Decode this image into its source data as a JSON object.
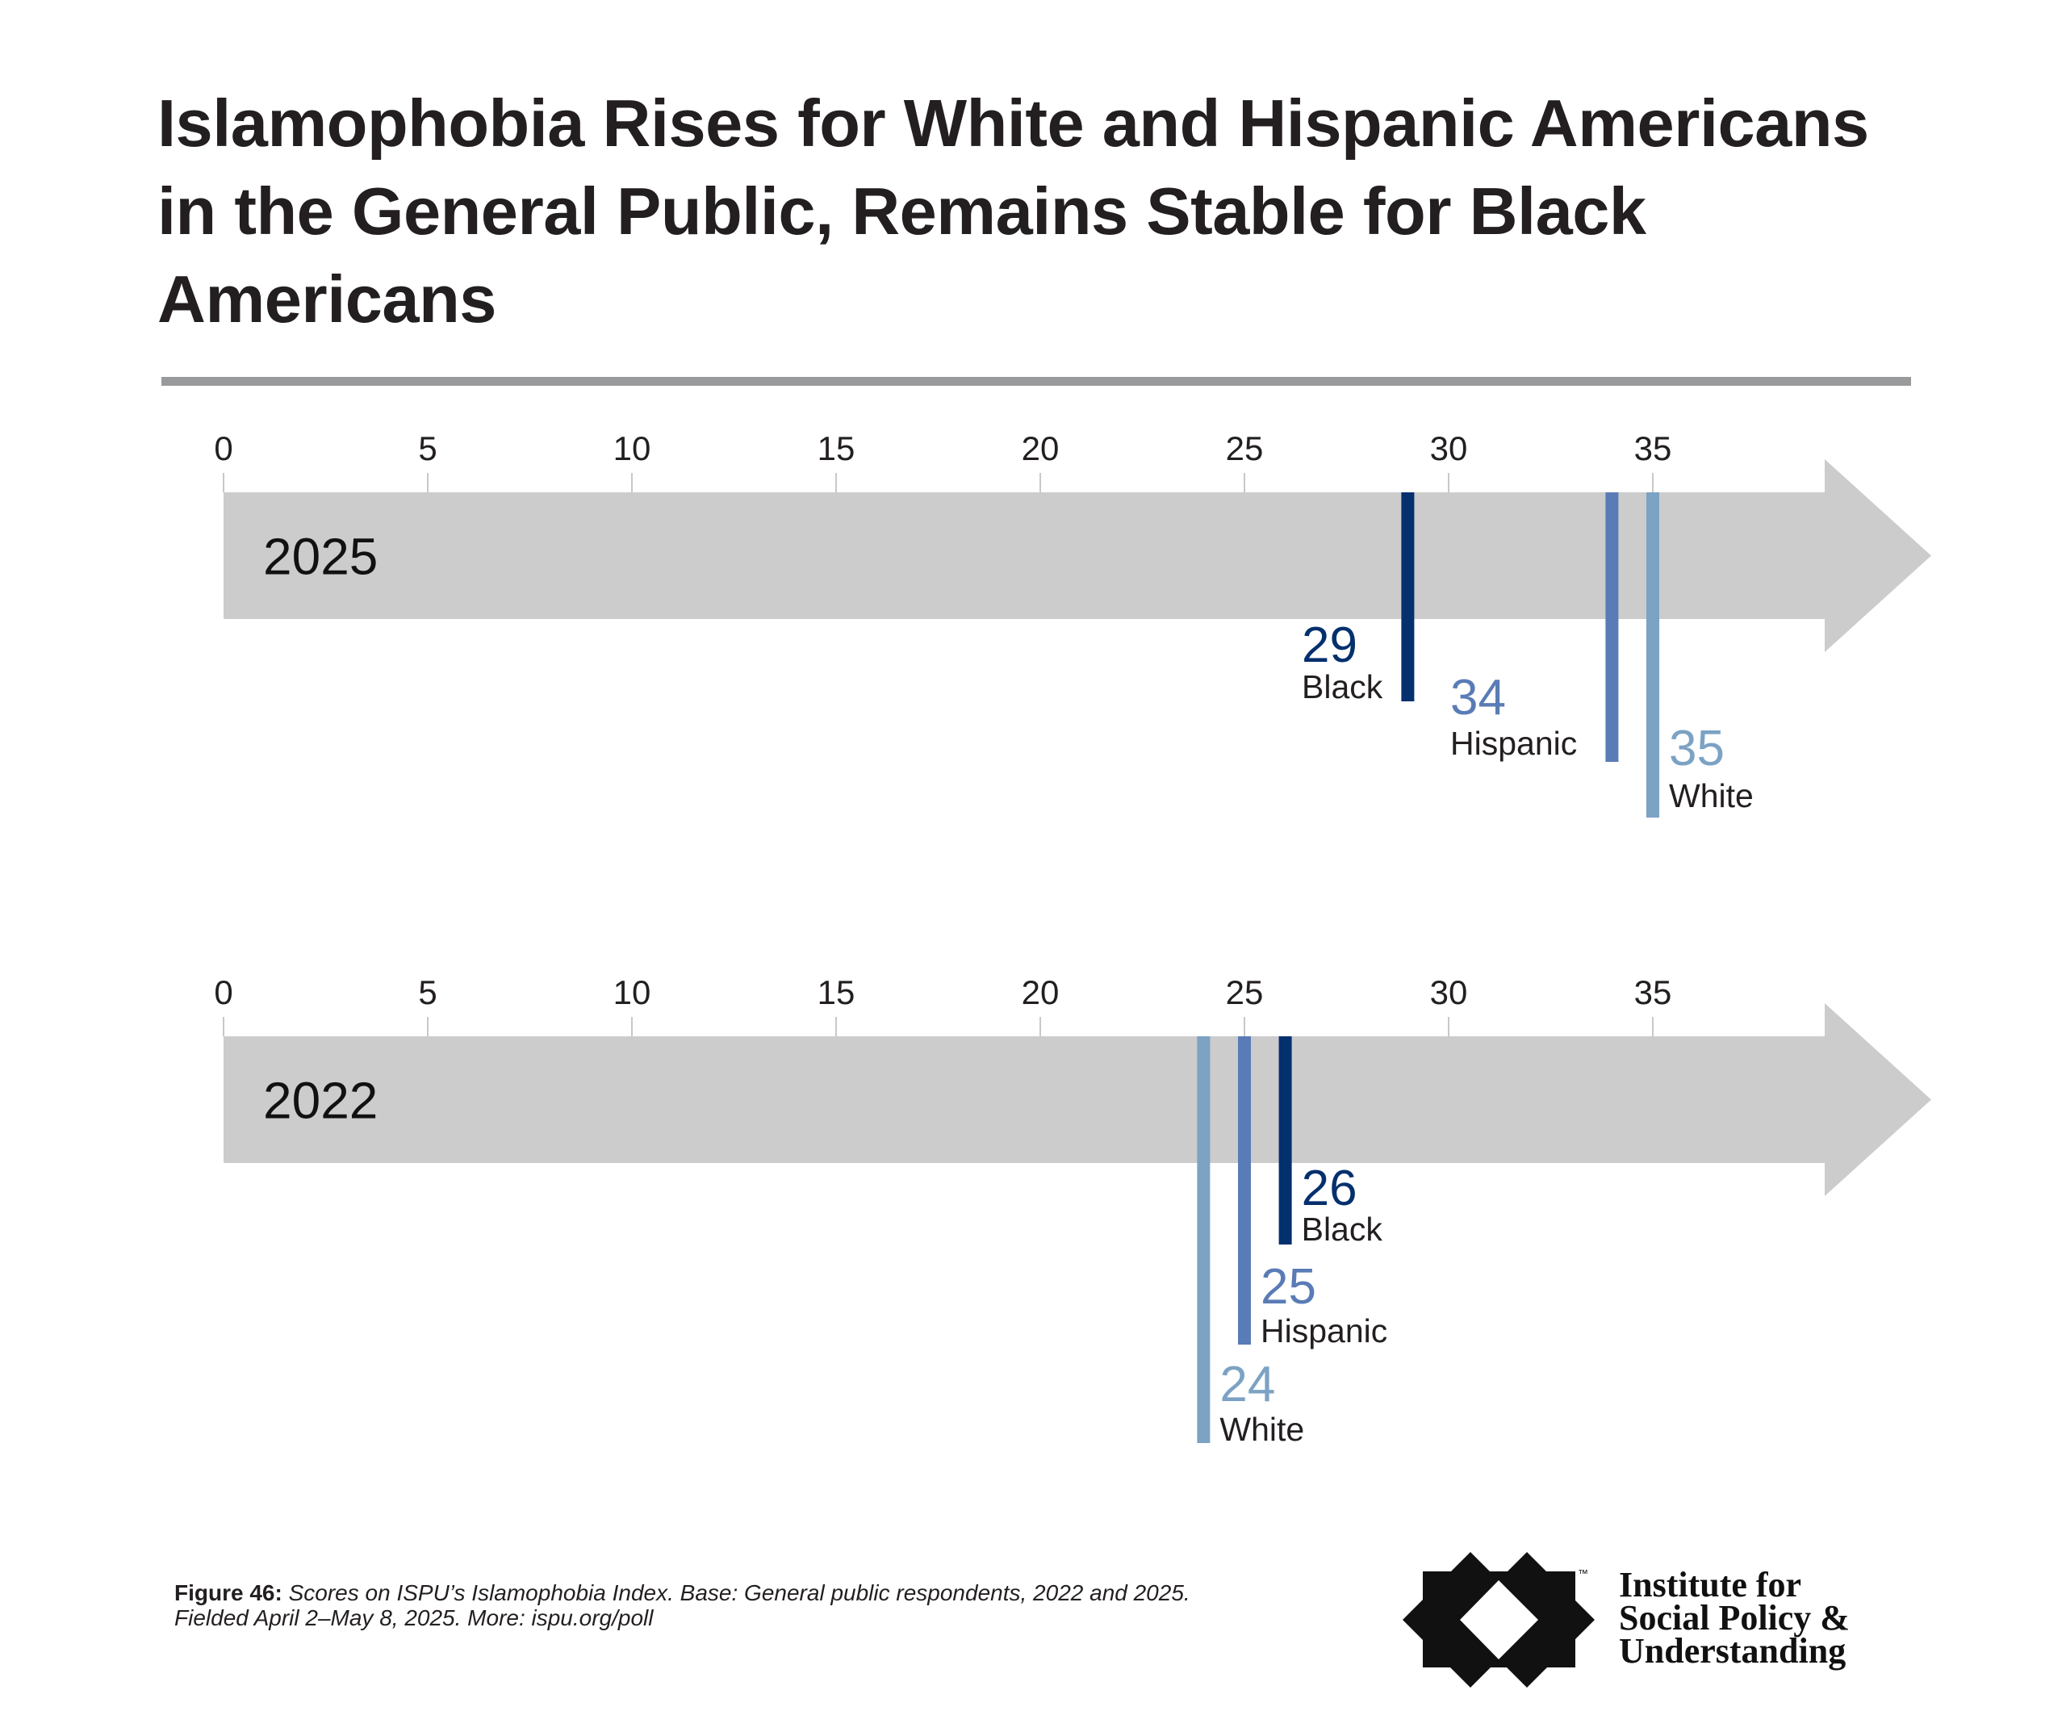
{
  "title": {
    "lines": [
      "Islamophobia Rises for White and Hispanic Americans",
      "in the General Public, Remains Stable for Black",
      "Americans"
    ]
  },
  "colors": {
    "Black": "#04306e",
    "Hispanic": "#5a7cb6",
    "White": "#7ca2c4",
    "bar": "#cccccc",
    "tick": "#c8c8c8",
    "label_text": "#231f20"
  },
  "chart_data": {
    "type": "bar",
    "title": "Islamophobia Rises for White and Hispanic Americans in the General Public, Remains Stable for Black Americans",
    "xlabel": "",
    "ylabel": "",
    "xlim": [
      0,
      40
    ],
    "ticks": [
      0,
      5,
      10,
      15,
      20,
      25,
      30,
      35
    ],
    "tick_labels": [
      "0",
      "5",
      "10",
      "15",
      "20",
      "25",
      "30",
      "35"
    ],
    "grid": false,
    "legend": "none (direct labels)",
    "panels": [
      {
        "year_label": "2025",
        "series": [
          {
            "name": "Black",
            "value": 29,
            "label": "29"
          },
          {
            "name": "Hispanic",
            "value": 34,
            "label": "34"
          },
          {
            "name": "White",
            "value": 35,
            "label": "35"
          }
        ]
      },
      {
        "year_label": "2022",
        "series": [
          {
            "name": "White",
            "value": 24,
            "label": "24"
          },
          {
            "name": "Hispanic",
            "value": 25,
            "label": "25"
          },
          {
            "name": "Black",
            "value": 26,
            "label": "26"
          }
        ]
      }
    ]
  },
  "footer": {
    "figure_label": "Figure 46:",
    "caption_line1": " Scores on ISPU’s Islamophobia Index. Base: General public respondents, 2022 and 2025.",
    "caption_line2": "Fielded April 2–May 8, 2025. More: ispu.org/poll"
  },
  "logo": {
    "tm": "™",
    "lines": [
      "Institute for",
      "Social Policy &",
      "Understanding"
    ]
  }
}
